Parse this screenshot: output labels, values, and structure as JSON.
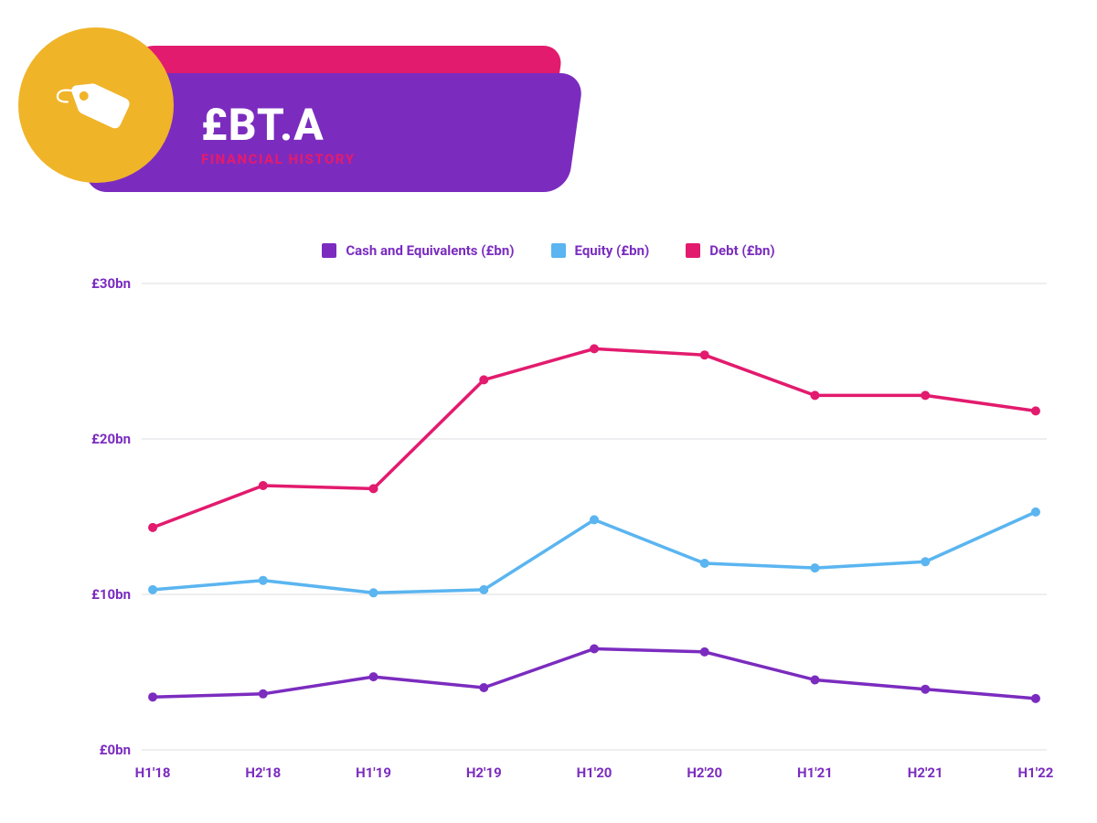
{
  "header": {
    "back_color": "#e21b6e",
    "front_color": "#7b2cbf",
    "icon_bg": "#f0b429",
    "icon_fg": "#ffffff",
    "ticker": "£BT.A",
    "subtitle": "FINANCIAL HISTORY",
    "subtitle_color": "#e21b6e"
  },
  "legend": {
    "text_color": "#7b2cbf",
    "items": [
      {
        "label": "Cash and Equivalents (£bn)",
        "color": "#7b2cbf"
      },
      {
        "label": "Equity (£bn)",
        "color": "#5ab5f0"
      },
      {
        "label": "Debt (£bn)",
        "color": "#e21b6e"
      }
    ]
  },
  "chart": {
    "type": "line",
    "background_color": "#ffffff",
    "grid_color": "#dcdde0",
    "axis_label_color": "#7b2cbf",
    "label_fontsize": 15,
    "ylim": [
      0,
      30
    ],
    "yticks": [
      0,
      10,
      20,
      30
    ],
    "ytick_labels": [
      "£0bn",
      "£10bn",
      "£20bn",
      "£30bn"
    ],
    "categories": [
      "H1'18",
      "H2'18",
      "H1'19",
      "H2'19",
      "H1'20",
      "H2'20",
      "H1'21",
      "H2'21",
      "H1'22"
    ],
    "marker_radius": 5,
    "line_width": 3.5,
    "series": [
      {
        "name": "Debt (£bn)",
        "color": "#e21b6e",
        "values": [
          14.3,
          17.0,
          16.8,
          23.8,
          25.8,
          25.4,
          22.8,
          22.8,
          21.8
        ]
      },
      {
        "name": "Equity (£bn)",
        "color": "#5ab5f0",
        "values": [
          10.3,
          10.9,
          10.1,
          10.3,
          14.8,
          12.0,
          11.7,
          12.1,
          15.3
        ]
      },
      {
        "name": "Cash and Equivalents (£bn)",
        "color": "#7b2cbf",
        "values": [
          3.4,
          3.6,
          4.7,
          4.0,
          6.5,
          6.3,
          4.5,
          3.9,
          3.3
        ]
      }
    ]
  }
}
